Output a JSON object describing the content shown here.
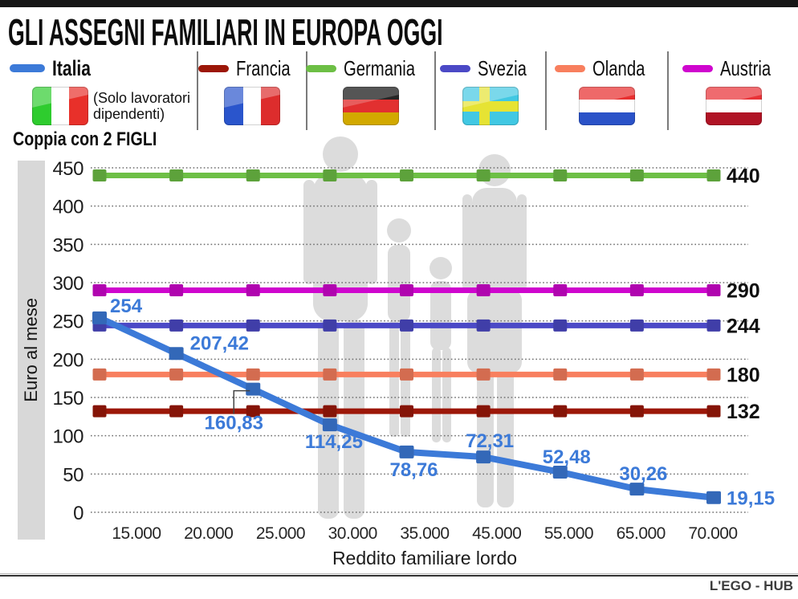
{
  "header": {
    "title": "GLI ASSEGNI FAMILIARI IN EUROPA OGGI"
  },
  "legend": {
    "items": [
      {
        "id": "italia",
        "label": "Italia",
        "note": "(Solo lavoratori dipendenti)",
        "color": "#3c7ad8",
        "flag": "italy"
      },
      {
        "id": "francia",
        "label": "Francia",
        "color": "#9c1708",
        "flag": "france"
      },
      {
        "id": "germania",
        "label": "Germania",
        "color": "#6dbf45",
        "flag": "germany"
      },
      {
        "id": "svezia",
        "label": "Svezia",
        "color": "#4b49c6",
        "flag": "sweden"
      },
      {
        "id": "olanda",
        "label": "Olanda",
        "color": "#f87f5e",
        "flag": "netherlands"
      },
      {
        "id": "austria",
        "label": "Austria",
        "color": "#cf06ce",
        "flag": "austria"
      }
    ]
  },
  "subtitle": "Coppia con 2 FIGLI",
  "chart_data": {
    "type": "line",
    "title": "Coppia con 2 FIGLI",
    "xlabel": "Reddito familiare lordo",
    "ylabel": "Euro al mese",
    "categories": [
      "15.000",
      "20.000",
      "25.000",
      "30.000",
      "35.000",
      "45.000",
      "55.000",
      "65.000",
      "70.000"
    ],
    "ylim": [
      0,
      450
    ],
    "ytick_step": 50,
    "yticks": [
      0,
      50,
      100,
      150,
      200,
      250,
      300,
      350,
      400,
      450
    ],
    "grid": "horizontal-dotted",
    "legend_position": "top",
    "series": [
      {
        "name": "Germania",
        "color": "#6dbf45",
        "values": [
          440,
          440,
          440,
          440,
          440,
          440,
          440,
          440,
          440
        ],
        "end_label": "440"
      },
      {
        "name": "Austria",
        "color": "#cf06ce",
        "values": [
          290,
          290,
          290,
          290,
          290,
          290,
          290,
          290,
          290
        ],
        "end_label": "290"
      },
      {
        "name": "Svezia",
        "color": "#4b49c6",
        "values": [
          244,
          244,
          244,
          244,
          244,
          244,
          244,
          244,
          244
        ],
        "end_label": "244"
      },
      {
        "name": "Olanda",
        "color": "#f87f5e",
        "values": [
          180,
          180,
          180,
          180,
          180,
          180,
          180,
          180,
          180
        ],
        "end_label": "180"
      },
      {
        "name": "Francia",
        "color": "#9c1708",
        "values": [
          132,
          132,
          132,
          132,
          132,
          132,
          132,
          132,
          132
        ],
        "end_label": "132"
      },
      {
        "name": "Italia",
        "color": "#3c7ad8",
        "label_color": "#3c7ad8",
        "values": [
          254,
          207.42,
          160.83,
          114.25,
          78.76,
          72.31,
          52.48,
          30.26,
          19.15
        ],
        "point_labels": [
          "254",
          "207,42",
          "160,83",
          "114,25",
          "78,76",
          "72,31",
          "52,48",
          "30,26",
          "19,15"
        ]
      }
    ]
  },
  "footer": {
    "credit": "L'EGO - HUB"
  }
}
